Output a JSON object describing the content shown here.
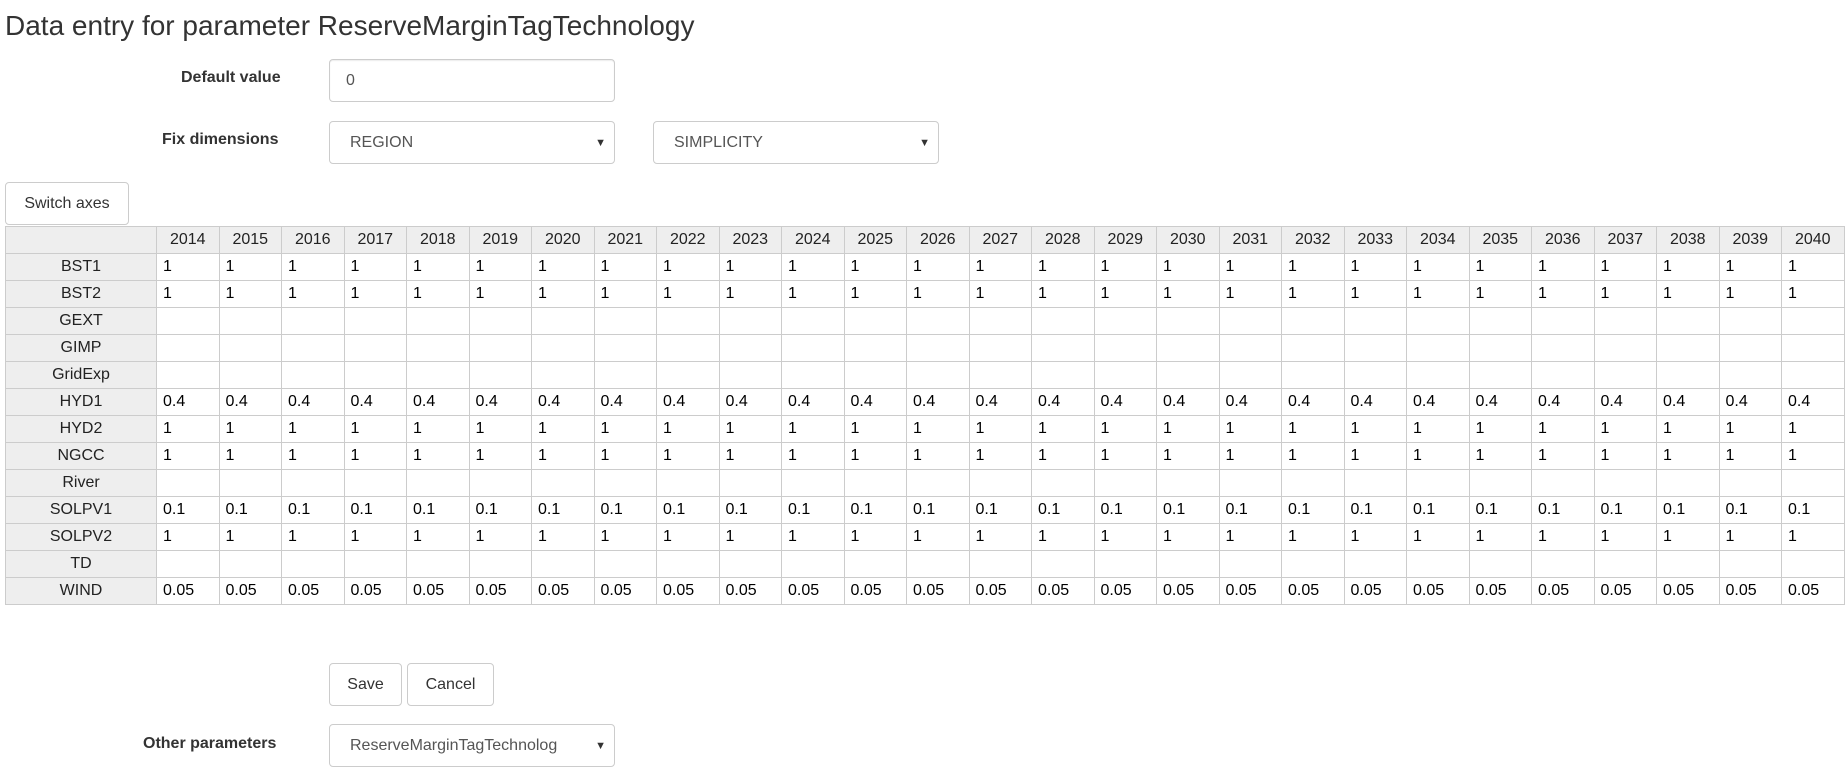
{
  "title": "Data entry for parameter ReserveMarginTagTechnology",
  "default_value": {
    "label": "Default value",
    "value": "0"
  },
  "fix_dimensions": {
    "label": "Fix dimensions",
    "select1": "REGION",
    "select2": "SIMPLICITY"
  },
  "switch_axes_label": "Switch axes",
  "table": {
    "columns": [
      "2014",
      "2015",
      "2016",
      "2017",
      "2018",
      "2019",
      "2020",
      "2021",
      "2022",
      "2023",
      "2024",
      "2025",
      "2026",
      "2027",
      "2028",
      "2029",
      "2030",
      "2031",
      "2032",
      "2033",
      "2034",
      "2035",
      "2036",
      "2037",
      "2038",
      "2039",
      "2040"
    ],
    "rows": [
      {
        "label": "BST1",
        "values": [
          "1",
          "1",
          "1",
          "1",
          "1",
          "1",
          "1",
          "1",
          "1",
          "1",
          "1",
          "1",
          "1",
          "1",
          "1",
          "1",
          "1",
          "1",
          "1",
          "1",
          "1",
          "1",
          "1",
          "1",
          "1",
          "1",
          "1"
        ]
      },
      {
        "label": "BST2",
        "values": [
          "1",
          "1",
          "1",
          "1",
          "1",
          "1",
          "1",
          "1",
          "1",
          "1",
          "1",
          "1",
          "1",
          "1",
          "1",
          "1",
          "1",
          "1",
          "1",
          "1",
          "1",
          "1",
          "1",
          "1",
          "1",
          "1",
          "1"
        ]
      },
      {
        "label": "GEXT",
        "values": [
          "",
          "",
          "",
          "",
          "",
          "",
          "",
          "",
          "",
          "",
          "",
          "",
          "",
          "",
          "",
          "",
          "",
          "",
          "",
          "",
          "",
          "",
          "",
          "",
          "",
          "",
          ""
        ]
      },
      {
        "label": "GIMP",
        "values": [
          "",
          "",
          "",
          "",
          "",
          "",
          "",
          "",
          "",
          "",
          "",
          "",
          "",
          "",
          "",
          "",
          "",
          "",
          "",
          "",
          "",
          "",
          "",
          "",
          "",
          "",
          ""
        ]
      },
      {
        "label": "GridExp",
        "values": [
          "",
          "",
          "",
          "",
          "",
          "",
          "",
          "",
          "",
          "",
          "",
          "",
          "",
          "",
          "",
          "",
          "",
          "",
          "",
          "",
          "",
          "",
          "",
          "",
          "",
          "",
          ""
        ]
      },
      {
        "label": "HYD1",
        "values": [
          "0.4",
          "0.4",
          "0.4",
          "0.4",
          "0.4",
          "0.4",
          "0.4",
          "0.4",
          "0.4",
          "0.4",
          "0.4",
          "0.4",
          "0.4",
          "0.4",
          "0.4",
          "0.4",
          "0.4",
          "0.4",
          "0.4",
          "0.4",
          "0.4",
          "0.4",
          "0.4",
          "0.4",
          "0.4",
          "0.4",
          "0.4"
        ]
      },
      {
        "label": "HYD2",
        "values": [
          "1",
          "1",
          "1",
          "1",
          "1",
          "1",
          "1",
          "1",
          "1",
          "1",
          "1",
          "1",
          "1",
          "1",
          "1",
          "1",
          "1",
          "1",
          "1",
          "1",
          "1",
          "1",
          "1",
          "1",
          "1",
          "1",
          "1"
        ]
      },
      {
        "label": "NGCC",
        "values": [
          "1",
          "1",
          "1",
          "1",
          "1",
          "1",
          "1",
          "1",
          "1",
          "1",
          "1",
          "1",
          "1",
          "1",
          "1",
          "1",
          "1",
          "1",
          "1",
          "1",
          "1",
          "1",
          "1",
          "1",
          "1",
          "1",
          "1"
        ]
      },
      {
        "label": "River",
        "values": [
          "",
          "",
          "",
          "",
          "",
          "",
          "",
          "",
          "",
          "",
          "",
          "",
          "",
          "",
          "",
          "",
          "",
          "",
          "",
          "",
          "",
          "",
          "",
          "",
          "",
          "",
          ""
        ]
      },
      {
        "label": "SOLPV1",
        "values": [
          "0.1",
          "0.1",
          "0.1",
          "0.1",
          "0.1",
          "0.1",
          "0.1",
          "0.1",
          "0.1",
          "0.1",
          "0.1",
          "0.1",
          "0.1",
          "0.1",
          "0.1",
          "0.1",
          "0.1",
          "0.1",
          "0.1",
          "0.1",
          "0.1",
          "0.1",
          "0.1",
          "0.1",
          "0.1",
          "0.1",
          "0.1"
        ]
      },
      {
        "label": "SOLPV2",
        "values": [
          "1",
          "1",
          "1",
          "1",
          "1",
          "1",
          "1",
          "1",
          "1",
          "1",
          "1",
          "1",
          "1",
          "1",
          "1",
          "1",
          "1",
          "1",
          "1",
          "1",
          "1",
          "1",
          "1",
          "1",
          "1",
          "1",
          "1"
        ]
      },
      {
        "label": "TD",
        "values": [
          "",
          "",
          "",
          "",
          "",
          "",
          "",
          "",
          "",
          "",
          "",
          "",
          "",
          "",
          "",
          "",
          "",
          "",
          "",
          "",
          "",
          "",
          "",
          "",
          "",
          "",
          ""
        ]
      },
      {
        "label": "WIND",
        "values": [
          "0.05",
          "0.05",
          "0.05",
          "0.05",
          "0.05",
          "0.05",
          "0.05",
          "0.05",
          "0.05",
          "0.05",
          "0.05",
          "0.05",
          "0.05",
          "0.05",
          "0.05",
          "0.05",
          "0.05",
          "0.05",
          "0.05",
          "0.05",
          "0.05",
          "0.05",
          "0.05",
          "0.05",
          "0.05",
          "0.05",
          "0.05"
        ]
      }
    ]
  },
  "save_label": "Save",
  "cancel_label": "Cancel",
  "other_parameters": {
    "label": "Other parameters",
    "selected": "ReserveMarginTagTechnolog"
  },
  "icons": {
    "caret": "caret-down-icon"
  }
}
